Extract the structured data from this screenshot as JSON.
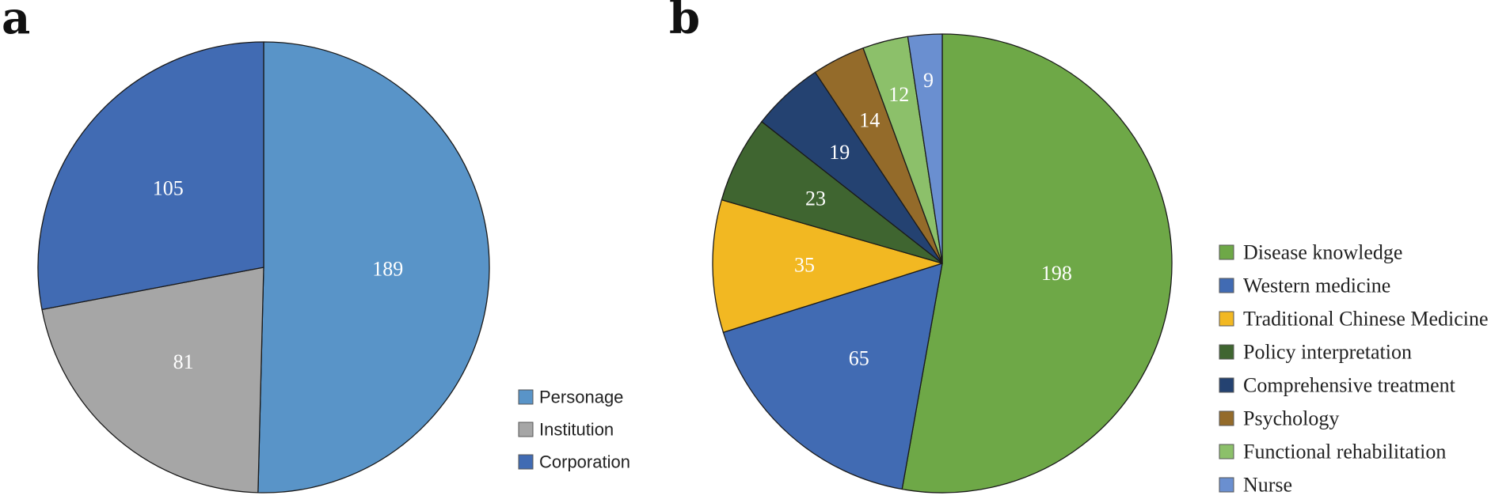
{
  "chart_data": [
    {
      "type": "pie",
      "panel": "a",
      "categories": [
        "Personage",
        "Institution",
        "Corporation"
      ],
      "values": [
        189,
        81,
        105
      ],
      "colors": [
        "#5994C8",
        "#A6A6A6",
        "#416BB3"
      ],
      "legend_position": "bottom-right"
    },
    {
      "type": "pie",
      "panel": "b",
      "categories": [
        "Disease knowledge",
        "Western medicine",
        "Traditional Chinese Medicine",
        "Policy interpretation",
        "Comprehensive treatment",
        "Psychology",
        "Functional rehabilitation",
        "Nurse"
      ],
      "values": [
        198,
        65,
        35,
        23,
        19,
        14,
        12,
        9
      ],
      "colors": [
        "#6EA847",
        "#416BB3",
        "#F2B822",
        "#3F6530",
        "#244271",
        "#946B2A",
        "#8CC06A",
        "#6A8FD0"
      ],
      "legend_position": "right"
    }
  ]
}
